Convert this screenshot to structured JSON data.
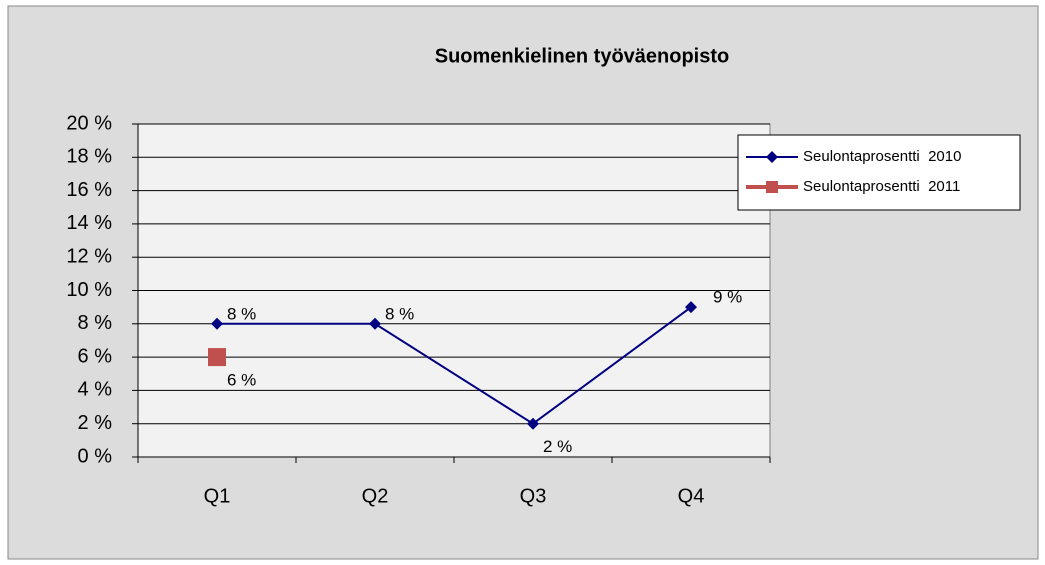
{
  "chart_data": {
    "type": "line",
    "title": "Suomenkielinen työväenopisto",
    "categories": [
      "Q1",
      "Q2",
      "Q3",
      "Q4"
    ],
    "series": [
      {
        "name": "Seulontaprosentti  2010",
        "color": "#000080",
        "values": [
          8,
          8,
          2,
          9
        ],
        "value_labels": [
          "8 %",
          "8 %",
          "2 %",
          "9 %"
        ]
      },
      {
        "name": "Seulontaprosentti  2011",
        "color": "#c0504d",
        "values": [
          6,
          null,
          null,
          null
        ],
        "value_labels": [
          "6 %",
          null,
          null,
          null
        ]
      }
    ],
    "ylim": [
      0,
      20
    ],
    "yticks": [
      {
        "value": 0,
        "label": "0 %"
      },
      {
        "value": 2,
        "label": "2 %"
      },
      {
        "value": 4,
        "label": "4 %"
      },
      {
        "value": 6,
        "label": "6 %"
      },
      {
        "value": 8,
        "label": "8 %"
      },
      {
        "value": 10,
        "label": "10 %"
      },
      {
        "value": 12,
        "label": "12 %"
      },
      {
        "value": 14,
        "label": "14 %"
      },
      {
        "value": 16,
        "label": "16 %"
      },
      {
        "value": 18,
        "label": "18 %"
      },
      {
        "value": 20,
        "label": "20 %"
      }
    ],
    "grid": true,
    "legend": "right"
  }
}
